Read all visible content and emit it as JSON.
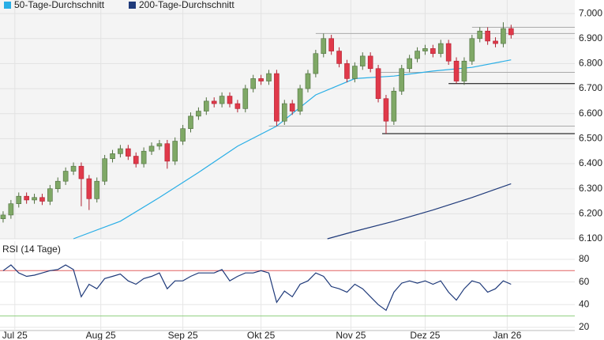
{
  "chart_data": [
    {
      "type": "candlestick",
      "ylim": [
        6100,
        7054
      ],
      "yticks": [
        {
          "value": 6100,
          "label": "6.100"
        },
        {
          "value": 6200,
          "label": "6.200"
        },
        {
          "value": 6300,
          "label": "6.300"
        },
        {
          "value": 6400,
          "label": "6.400"
        },
        {
          "value": 6500,
          "label": "6.500"
        },
        {
          "value": 6600,
          "label": "6.600"
        },
        {
          "value": 6700,
          "label": "6.700"
        },
        {
          "value": 6800,
          "label": "6.800"
        },
        {
          "value": 6900,
          "label": "6.900"
        },
        {
          "value": 7000,
          "label": "7.000"
        }
      ],
      "candles": {
        "up_color": "#7fa866",
        "down_color": "#e0394a",
        "x": [
          0,
          2,
          4,
          6,
          8,
          10,
          12,
          14,
          16,
          18,
          20,
          22,
          24,
          26,
          28,
          30,
          32,
          34,
          36,
          38,
          40,
          42,
          44,
          46,
          48,
          50,
          52,
          54,
          56,
          58,
          60,
          62,
          64,
          66,
          68,
          70,
          72,
          74,
          76,
          78,
          80,
          82,
          84,
          86,
          88,
          90,
          92,
          94,
          96,
          98,
          100,
          102,
          104,
          106,
          108,
          110,
          112,
          114,
          116,
          118,
          120,
          122,
          124,
          126,
          128,
          130
        ],
        "open": [
          6180,
          6195,
          6240,
          6270,
          6255,
          6265,
          6250,
          6300,
          6330,
          6370,
          6390,
          6340,
          6260,
          6330,
          6420,
          6440,
          6460,
          6430,
          6400,
          6450,
          6470,
          6480,
          6410,
          6490,
          6540,
          6590,
          6610,
          6650,
          6640,
          6670,
          6640,
          6620,
          6700,
          6740,
          6730,
          6760,
          6570,
          6640,
          6610,
          6700,
          6760,
          6840,
          6900,
          6850,
          6800,
          6740,
          6790,
          6830,
          6780,
          6660,
          6570,
          6690,
          6780,
          6820,
          6850,
          6860,
          6840,
          6880,
          6810,
          6730,
          6810,
          6900,
          6930,
          6890,
          6880,
          6940
        ],
        "high": [
          6210,
          6255,
          6285,
          6285,
          6280,
          6280,
          6315,
          6345,
          6385,
          6405,
          6405,
          6355,
          6345,
          6435,
          6455,
          6475,
          6475,
          6445,
          6465,
          6485,
          6495,
          6495,
          6505,
          6555,
          6605,
          6625,
          6665,
          6665,
          6685,
          6685,
          6655,
          6715,
          6755,
          6755,
          6775,
          6775,
          6655,
          6655,
          6715,
          6775,
          6855,
          6920,
          6915,
          6865,
          6815,
          6805,
          6845,
          6845,
          6795,
          6675,
          6705,
          6795,
          6835,
          6865,
          6875,
          6875,
          6895,
          6895,
          6825,
          6825,
          6915,
          6945,
          6945,
          6905,
          6965,
          6955
        ],
        "low": [
          6165,
          6180,
          6225,
          6240,
          6240,
          6235,
          6235,
          6285,
          6315,
          6355,
          6230,
          6215,
          6245,
          6315,
          6405,
          6425,
          6415,
          6385,
          6385,
          6435,
          6455,
          6380,
          6395,
          6475,
          6525,
          6575,
          6595,
          6625,
          6625,
          6625,
          6605,
          6605,
          6685,
          6715,
          6715,
          6550,
          6555,
          6595,
          6595,
          6685,
          6745,
          6825,
          6835,
          6785,
          6725,
          6725,
          6775,
          6765,
          6645,
          6520,
          6555,
          6675,
          6765,
          6805,
          6835,
          6825,
          6825,
          6795,
          6720,
          6715,
          6795,
          6885,
          6875,
          6865,
          6865,
          6900
        ],
        "close": [
          6195,
          6240,
          6270,
          6255,
          6265,
          6250,
          6300,
          6330,
          6370,
          6390,
          6340,
          6260,
          6330,
          6420,
          6440,
          6460,
          6430,
          6400,
          6450,
          6470,
          6480,
          6410,
          6490,
          6540,
          6590,
          6610,
          6650,
          6640,
          6670,
          6640,
          6620,
          6700,
          6740,
          6730,
          6760,
          6570,
          6640,
          6610,
          6700,
          6760,
          6840,
          6900,
          6850,
          6800,
          6740,
          6790,
          6830,
          6780,
          6660,
          6570,
          6690,
          6780,
          6820,
          6850,
          6860,
          6840,
          6880,
          6810,
          6730,
          6810,
          6900,
          6930,
          6890,
          6880,
          6940,
          6915
        ]
      },
      "series": [
        {
          "name": "50-Tage-Durchschnitt",
          "color": "#29aee6",
          "x": [
            18,
            30,
            40,
            50,
            60,
            70,
            80,
            90,
            100,
            110,
            120,
            130
          ],
          "values": [
            6100,
            6170,
            6265,
            6365,
            6470,
            6550,
            6675,
            6740,
            6750,
            6770,
            6785,
            6815
          ]
        },
        {
          "name": "200-Tage-Durchschnitt",
          "color": "#1f3a7a",
          "x": [
            83,
            90,
            100,
            110,
            120,
            130
          ],
          "values": [
            6100,
            6130,
            6170,
            6215,
            6265,
            6320
          ]
        }
      ],
      "levels": [
        {
          "value": 6945,
          "start": 120,
          "color": "#aaaaaa"
        },
        {
          "value": 6920,
          "start": 80,
          "color": "#aaaaaa"
        },
        {
          "value": 6765,
          "start": 96,
          "color": "#aaaaaa"
        },
        {
          "value": 6550,
          "start": 68,
          "color": "#aaaaaa"
        },
        {
          "value": 6720,
          "start": 114,
          "color": "#000000"
        },
        {
          "value": 6520,
          "start": 97,
          "color": "#000000"
        }
      ]
    },
    {
      "type": "line",
      "title": "RSI (14 Tage)",
      "xlim": [
        -0.8,
        146.3
      ],
      "xticks": [
        {
          "value": 3,
          "label": "Jul 25"
        },
        {
          "value": 25,
          "label": "Aug 25"
        },
        {
          "value": 46,
          "label": "Sep 25"
        },
        {
          "value": 66,
          "label": "Okt 25"
        },
        {
          "value": 89,
          "label": "Nov 25"
        },
        {
          "value": 108,
          "label": "Dez 25"
        },
        {
          "value": 129,
          "label": "Jan 26"
        }
      ],
      "ylim": [
        17.2,
        96
      ],
      "yticks": [
        20,
        40,
        60,
        80
      ],
      "reference_lines": [
        {
          "value": 70,
          "color": "#e06060"
        },
        {
          "value": 30,
          "color": "#8fcf7f"
        }
      ],
      "series": [
        {
          "color": "#1f3a7a",
          "x": [
            0,
            2,
            4,
            6,
            8,
            10,
            12,
            14,
            16,
            18,
            20,
            22,
            24,
            26,
            28,
            30,
            32,
            34,
            36,
            38,
            40,
            42,
            44,
            46,
            48,
            50,
            52,
            54,
            56,
            58,
            60,
            62,
            64,
            66,
            68,
            70,
            72,
            74,
            76,
            78,
            80,
            82,
            84,
            86,
            88,
            90,
            92,
            94,
            96,
            98,
            100,
            102,
            104,
            106,
            108,
            110,
            112,
            114,
            116,
            118,
            120,
            122,
            124,
            126,
            128,
            130
          ],
          "values": [
            70,
            75,
            68,
            65,
            66,
            68,
            70,
            71,
            75,
            71,
            47,
            58,
            54,
            63,
            65,
            67,
            61,
            58,
            63,
            65,
            68,
            54,
            61,
            61,
            65,
            68,
            68,
            68,
            71,
            61,
            65,
            68,
            68,
            70,
            68,
            42,
            52,
            47,
            58,
            61,
            68,
            65,
            56,
            54,
            51,
            58,
            54,
            47,
            40,
            35,
            51,
            59,
            61,
            59,
            61,
            58,
            61,
            51,
            44,
            54,
            61,
            59,
            51,
            54,
            61,
            58
          ]
        }
      ]
    }
  ]
}
